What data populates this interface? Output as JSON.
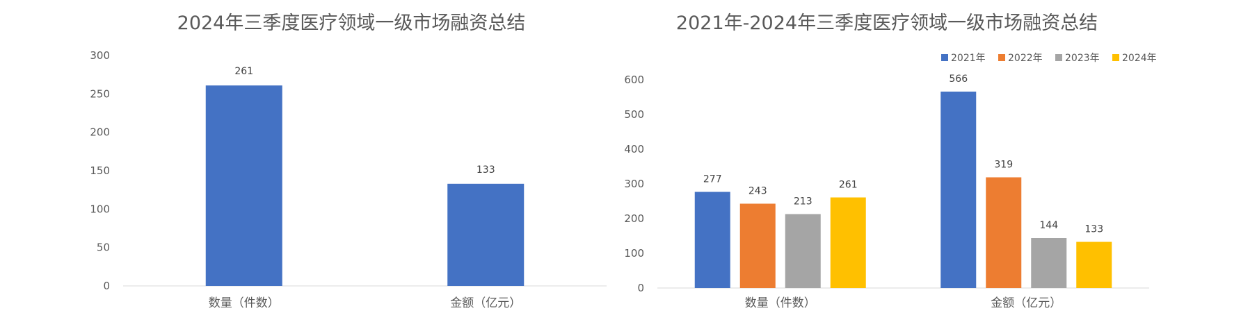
{
  "chart_data": [
    {
      "type": "bar",
      "title": "2024年三季度医疗领域一级市场融资总结",
      "categories": [
        "数量（件数）",
        "金额（亿元）"
      ],
      "series": [
        {
          "values": [
            261,
            133
          ],
          "color": "#4472C4"
        }
      ],
      "ylim": [
        0,
        300
      ],
      "yticks": [
        0,
        50,
        100,
        150,
        200,
        250,
        300
      ],
      "grid": false,
      "legend": "none"
    },
    {
      "type": "bar",
      "title": "2021年-2024年三季度医疗领域一级市场融资总结",
      "categories": [
        "数量（件数）",
        "金额（亿元）"
      ],
      "series": [
        {
          "name": "2021年",
          "values": [
            277,
            566
          ],
          "color": "#4472C4"
        },
        {
          "name": "2022年",
          "values": [
            243,
            319
          ],
          "color": "#ED7D31"
        },
        {
          "name": "2023年",
          "values": [
            213,
            144
          ],
          "color": "#A5A5A5"
        },
        {
          "name": "2024年",
          "values": [
            261,
            133
          ],
          "color": "#FFC000"
        }
      ],
      "ylim": [
        0,
        600
      ],
      "yticks": [
        0,
        100,
        200,
        300,
        400,
        500,
        600
      ],
      "grid": false,
      "legend": "top-right"
    }
  ]
}
